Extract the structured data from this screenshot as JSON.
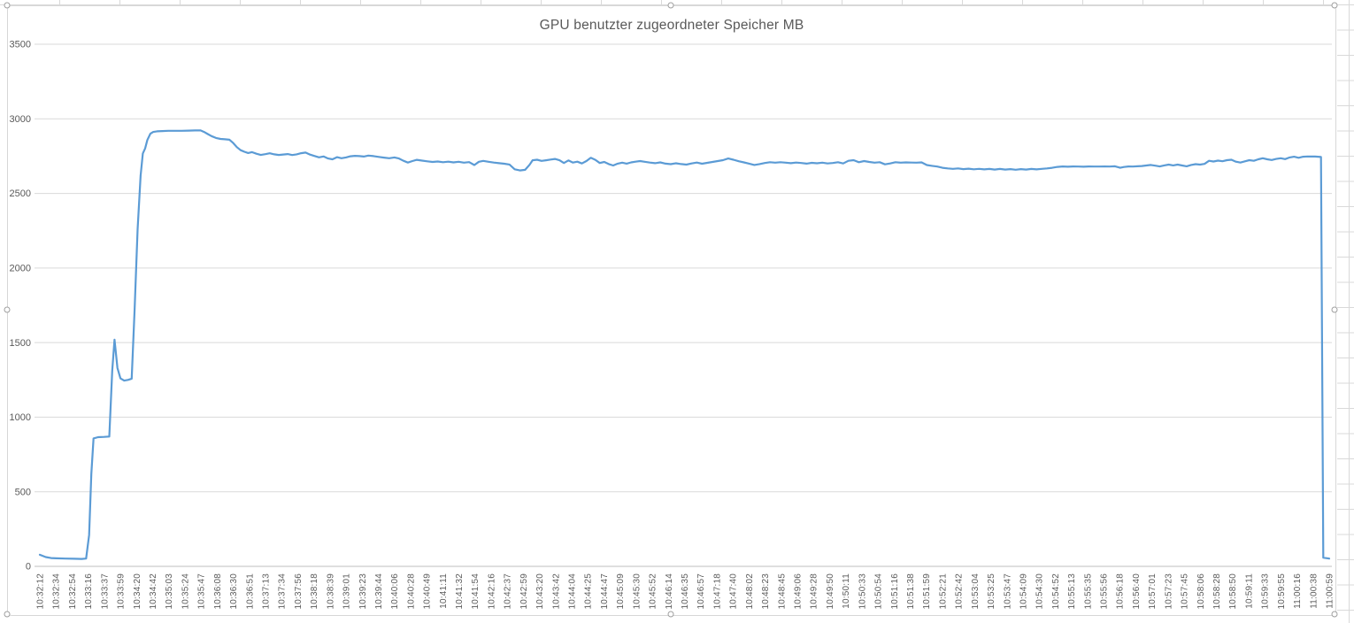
{
  "chart_data": {
    "type": "line",
    "title": "GPU benutzter zugeordneter Speicher MB",
    "xlabel": "",
    "ylabel": "",
    "legend": "none",
    "grid": "horizontal",
    "line_color": "#5B9BD5",
    "grid_color": "#D9D9D9",
    "axis_line_color": "#BFBFBF",
    "text_color": "#595959",
    "y_axis": {
      "min": 0,
      "max": 3500,
      "step": 500,
      "tick_labels": [
        "0",
        "500",
        "1000",
        "1500",
        "2000",
        "2500",
        "3000",
        "3500"
      ]
    },
    "x_ticks": [
      "10:32:12",
      "10:32:34",
      "10:32:54",
      "10:33:16",
      "10:33:37",
      "10:33:59",
      "10:34:20",
      "10:34:42",
      "10:35:03",
      "10:35:24",
      "10:35:47",
      "10:36:08",
      "10:36:30",
      "10:36:51",
      "10:37:13",
      "10:37:34",
      "10:37:56",
      "10:38:18",
      "10:38:39",
      "10:39:01",
      "10:39:23",
      "10:39:44",
      "10:40:06",
      "10:40:28",
      "10:40:49",
      "10:41:11",
      "10:41:32",
      "10:41:54",
      "10:42:16",
      "10:42:37",
      "10:42:59",
      "10:43:20",
      "10:43:42",
      "10:44:04",
      "10:44:25",
      "10:44:47",
      "10:45:09",
      "10:45:30",
      "10:45:52",
      "10:46:14",
      "10:46:35",
      "10:46:57",
      "10:47:18",
      "10:47:40",
      "10:48:02",
      "10:48:23",
      "10:48:45",
      "10:49:06",
      "10:49:28",
      "10:49:50",
      "10:50:11",
      "10:50:33",
      "10:50:54",
      "10:51:16",
      "10:51:38",
      "10:51:59",
      "10:52:21",
      "10:52:42",
      "10:53:04",
      "10:53:25",
      "10:53:47",
      "10:54:09",
      "10:54:30",
      "10:54:52",
      "10:55:13",
      "10:55:35",
      "10:55:56",
      "10:56:18",
      "10:56:40",
      "10:57:01",
      "10:57:23",
      "10:57:45",
      "10:58:06",
      "10:58:28",
      "10:58:50",
      "10:59:11",
      "10:59:33",
      "10:59:55",
      "11:00:16",
      "11:00:38",
      "11:00:59"
    ],
    "duration_seconds": 1727,
    "series": [
      {
        "name": "GPU benutzter zugeordneter Speicher MB",
        "unit": "MB",
        "points_t_v": [
          [
            0,
            78
          ],
          [
            8,
            62
          ],
          [
            15,
            56
          ],
          [
            22,
            54
          ],
          [
            34,
            52
          ],
          [
            46,
            51
          ],
          [
            56,
            50
          ],
          [
            62,
            52
          ],
          [
            66,
            210
          ],
          [
            69,
            620
          ],
          [
            72,
            858
          ],
          [
            78,
            866
          ],
          [
            86,
            868
          ],
          [
            93,
            870
          ],
          [
            97,
            1310
          ],
          [
            100,
            1520
          ],
          [
            104,
            1330
          ],
          [
            108,
            1260
          ],
          [
            113,
            1245
          ],
          [
            118,
            1250
          ],
          [
            123,
            1258
          ],
          [
            127,
            1720
          ],
          [
            131,
            2260
          ],
          [
            135,
            2620
          ],
          [
            138,
            2768
          ],
          [
            141,
            2802
          ],
          [
            144,
            2858
          ],
          [
            148,
            2900
          ],
          [
            152,
            2912
          ],
          [
            157,
            2916
          ],
          [
            164,
            2918
          ],
          [
            172,
            2920
          ],
          [
            181,
            2920
          ],
          [
            190,
            2920
          ],
          [
            199,
            2921
          ],
          [
            208,
            2922
          ],
          [
            215,
            2923
          ],
          [
            220,
            2912
          ],
          [
            225,
            2898
          ],
          [
            230,
            2884
          ],
          [
            236,
            2872
          ],
          [
            242,
            2865
          ],
          [
            248,
            2863
          ],
          [
            254,
            2860
          ],
          [
            259,
            2838
          ],
          [
            264,
            2810
          ],
          [
            269,
            2790
          ],
          [
            274,
            2779
          ],
          [
            279,
            2771
          ],
          [
            284,
            2777
          ],
          [
            290,
            2766
          ],
          [
            296,
            2758
          ],
          [
            302,
            2763
          ],
          [
            308,
            2769
          ],
          [
            314,
            2762
          ],
          [
            320,
            2758
          ],
          [
            326,
            2761
          ],
          [
            332,
            2764
          ],
          [
            338,
            2757
          ],
          [
            344,
            2762
          ],
          [
            350,
            2770
          ],
          [
            356,
            2774
          ],
          [
            362,
            2760
          ],
          [
            368,
            2751
          ],
          [
            374,
            2742
          ],
          [
            380,
            2748
          ],
          [
            386,
            2734
          ],
          [
            392,
            2729
          ],
          [
            398,
            2743
          ],
          [
            404,
            2736
          ],
          [
            410,
            2741
          ],
          [
            416,
            2749
          ],
          [
            422,
            2752
          ],
          [
            428,
            2750
          ],
          [
            434,
            2747
          ],
          [
            440,
            2754
          ],
          [
            447,
            2750
          ],
          [
            454,
            2745
          ],
          [
            461,
            2740
          ],
          [
            468,
            2736
          ],
          [
            475,
            2741
          ],
          [
            481,
            2734
          ],
          [
            487,
            2719
          ],
          [
            493,
            2707
          ],
          [
            499,
            2717
          ],
          [
            505,
            2725
          ],
          [
            512,
            2720
          ],
          [
            519,
            2715
          ],
          [
            526,
            2711
          ],
          [
            533,
            2714
          ],
          [
            540,
            2709
          ],
          [
            547,
            2713
          ],
          [
            554,
            2708
          ],
          [
            561,
            2712
          ],
          [
            568,
            2706
          ],
          [
            575,
            2710
          ],
          [
            582,
            2690
          ],
          [
            588,
            2712
          ],
          [
            594,
            2718
          ],
          [
            601,
            2712
          ],
          [
            608,
            2707
          ],
          [
            615,
            2703
          ],
          [
            622,
            2699
          ],
          [
            629,
            2694
          ],
          [
            636,
            2662
          ],
          [
            643,
            2654
          ],
          [
            650,
            2658
          ],
          [
            656,
            2692
          ],
          [
            660,
            2722
          ],
          [
            666,
            2726
          ],
          [
            672,
            2718
          ],
          [
            678,
            2722
          ],
          [
            684,
            2727
          ],
          [
            690,
            2731
          ],
          [
            696,
            2722
          ],
          [
            702,
            2704
          ],
          [
            708,
            2721
          ],
          [
            714,
            2707
          ],
          [
            720,
            2713
          ],
          [
            726,
            2701
          ],
          [
            732,
            2717
          ],
          [
            738,
            2739
          ],
          [
            744,
            2725
          ],
          [
            750,
            2704
          ],
          [
            756,
            2711
          ],
          [
            762,
            2697
          ],
          [
            768,
            2687
          ],
          [
            774,
            2700
          ],
          [
            780,
            2706
          ],
          [
            786,
            2700
          ],
          [
            792,
            2708
          ],
          [
            798,
            2713
          ],
          [
            804,
            2717
          ],
          [
            810,
            2712
          ],
          [
            817,
            2707
          ],
          [
            824,
            2703
          ],
          [
            831,
            2708
          ],
          [
            838,
            2700
          ],
          [
            845,
            2696
          ],
          [
            852,
            2702
          ],
          [
            859,
            2697
          ],
          [
            866,
            2693
          ],
          [
            873,
            2701
          ],
          [
            880,
            2707
          ],
          [
            887,
            2699
          ],
          [
            894,
            2705
          ],
          [
            901,
            2711
          ],
          [
            908,
            2717
          ],
          [
            915,
            2723
          ],
          [
            922,
            2734
          ],
          [
            929,
            2726
          ],
          [
            936,
            2716
          ],
          [
            943,
            2708
          ],
          [
            950,
            2700
          ],
          [
            957,
            2691
          ],
          [
            964,
            2697
          ],
          [
            971,
            2704
          ],
          [
            978,
            2709
          ],
          [
            985,
            2706
          ],
          [
            992,
            2709
          ],
          [
            999,
            2706
          ],
          [
            1006,
            2703
          ],
          [
            1013,
            2707
          ],
          [
            1020,
            2704
          ],
          [
            1027,
            2700
          ],
          [
            1034,
            2705
          ],
          [
            1041,
            2702
          ],
          [
            1048,
            2706
          ],
          [
            1055,
            2701
          ],
          [
            1062,
            2704
          ],
          [
            1069,
            2709
          ],
          [
            1076,
            2701
          ],
          [
            1083,
            2719
          ],
          [
            1090,
            2723
          ],
          [
            1097,
            2709
          ],
          [
            1104,
            2717
          ],
          [
            1111,
            2711
          ],
          [
            1118,
            2706
          ],
          [
            1125,
            2709
          ],
          [
            1132,
            2695
          ],
          [
            1139,
            2701
          ],
          [
            1146,
            2709
          ],
          [
            1153,
            2706
          ],
          [
            1160,
            2708
          ],
          [
            1167,
            2707
          ],
          [
            1174,
            2706
          ],
          [
            1181,
            2708
          ],
          [
            1188,
            2690
          ],
          [
            1195,
            2685
          ],
          [
            1202,
            2680
          ],
          [
            1209,
            2672
          ],
          [
            1216,
            2668
          ],
          [
            1223,
            2665
          ],
          [
            1230,
            2668
          ],
          [
            1237,
            2663
          ],
          [
            1244,
            2666
          ],
          [
            1251,
            2662
          ],
          [
            1258,
            2665
          ],
          [
            1265,
            2661
          ],
          [
            1272,
            2664
          ],
          [
            1279,
            2660
          ],
          [
            1286,
            2664
          ],
          [
            1293,
            2660
          ],
          [
            1300,
            2663
          ],
          [
            1307,
            2659
          ],
          [
            1314,
            2663
          ],
          [
            1321,
            2660
          ],
          [
            1328,
            2664
          ],
          [
            1335,
            2661
          ],
          [
            1342,
            2665
          ],
          [
            1349,
            2668
          ],
          [
            1356,
            2672
          ],
          [
            1363,
            2678
          ],
          [
            1370,
            2681
          ],
          [
            1377,
            2679
          ],
          [
            1384,
            2681
          ],
          [
            1391,
            2680
          ],
          [
            1398,
            2679
          ],
          [
            1405,
            2681
          ],
          [
            1412,
            2680
          ],
          [
            1419,
            2680
          ],
          [
            1426,
            2681
          ],
          [
            1433,
            2680
          ],
          [
            1440,
            2682
          ],
          [
            1447,
            2672
          ],
          [
            1452,
            2677
          ],
          [
            1458,
            2681
          ],
          [
            1464,
            2680
          ],
          [
            1470,
            2682
          ],
          [
            1476,
            2684
          ],
          [
            1482,
            2687
          ],
          [
            1488,
            2691
          ],
          [
            1494,
            2686
          ],
          [
            1500,
            2681
          ],
          [
            1506,
            2688
          ],
          [
            1512,
            2693
          ],
          [
            1518,
            2688
          ],
          [
            1524,
            2693
          ],
          [
            1530,
            2687
          ],
          [
            1536,
            2682
          ],
          [
            1542,
            2691
          ],
          [
            1548,
            2696
          ],
          [
            1554,
            2693
          ],
          [
            1560,
            2698
          ],
          [
            1566,
            2719
          ],
          [
            1572,
            2714
          ],
          [
            1578,
            2720
          ],
          [
            1584,
            2716
          ],
          [
            1590,
            2723
          ],
          [
            1596,
            2726
          ],
          [
            1602,
            2713
          ],
          [
            1608,
            2707
          ],
          [
            1614,
            2715
          ],
          [
            1620,
            2723
          ],
          [
            1626,
            2719
          ],
          [
            1632,
            2729
          ],
          [
            1638,
            2736
          ],
          [
            1644,
            2729
          ],
          [
            1650,
            2724
          ],
          [
            1656,
            2731
          ],
          [
            1662,
            2736
          ],
          [
            1668,
            2730
          ],
          [
            1674,
            2741
          ],
          [
            1680,
            2746
          ],
          [
            1686,
            2739
          ],
          [
            1692,
            2746
          ],
          [
            1698,
            2748
          ],
          [
            1704,
            2747
          ],
          [
            1708,
            2747
          ],
          [
            1712,
            2746
          ],
          [
            1716,
            2744
          ],
          [
            1719,
            58
          ],
          [
            1727,
            52
          ]
        ]
      }
    ]
  }
}
